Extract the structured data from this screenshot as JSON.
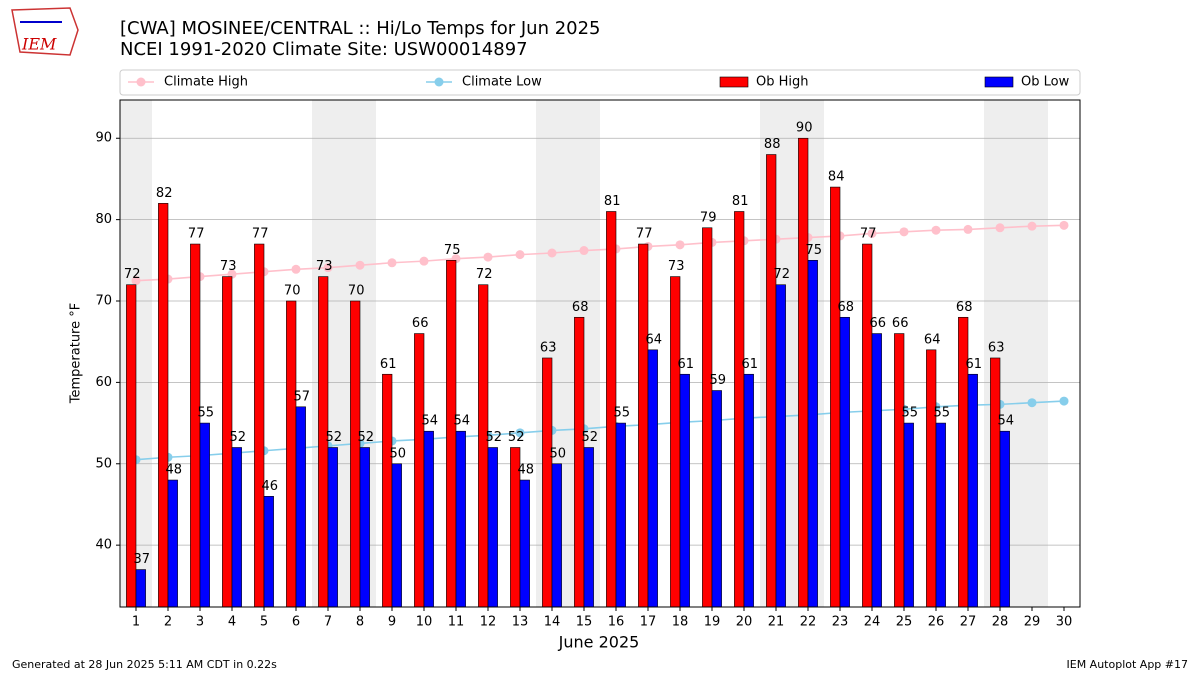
{
  "logo_text": "IEM",
  "chart_data": {
    "type": "bar",
    "title": "[CWA] MOSINEE/CENTRAL :: Hi/Lo Temps for Jun 2025",
    "subtitle": "NCEI 1991-2020 Climate Site: USW00014897",
    "x_label": "June 2025",
    "y_label": "Temperature $^\\circ$F",
    "x": [
      1,
      2,
      3,
      4,
      5,
      6,
      7,
      8,
      9,
      10,
      11,
      12,
      13,
      14,
      15,
      16,
      17,
      18,
      19,
      20,
      21,
      22,
      23,
      24,
      25,
      26,
      27,
      28,
      29,
      30
    ],
    "xlim": [
      0.5,
      30.5
    ],
    "xticks": [
      1,
      2,
      3,
      4,
      5,
      6,
      7,
      8,
      9,
      10,
      11,
      12,
      13,
      14,
      15,
      16,
      17,
      18,
      19,
      20,
      21,
      22,
      23,
      24,
      25,
      26,
      27,
      28,
      29,
      30
    ],
    "ylim": [
      32.4,
      94.7
    ],
    "yticks": [
      40,
      50,
      60,
      70,
      80,
      90
    ],
    "grid": true,
    "shaded_x": [
      1,
      7,
      8,
      14,
      15,
      21,
      22,
      28,
      29
    ],
    "series": [
      {
        "name": "Climate High",
        "type": "line",
        "color": "#ffc0cb",
        "values": [
          72.5,
          72.7,
          73.0,
          73.3,
          73.6,
          73.9,
          74.1,
          74.4,
          74.7,
          74.9,
          75.2,
          75.4,
          75.7,
          75.9,
          76.2,
          76.4,
          76.7,
          76.9,
          77.2,
          77.4,
          77.6,
          77.8,
          78.0,
          78.3,
          78.5,
          78.7,
          78.8,
          79.0,
          79.2,
          79.3
        ]
      },
      {
        "name": "Climate Low",
        "type": "line",
        "color": "#87ceeb",
        "values": [
          50.5,
          50.8,
          51.0,
          51.3,
          51.6,
          51.9,
          52.2,
          52.5,
          52.8,
          53.0,
          53.3,
          53.5,
          53.8,
          54.1,
          54.3,
          54.6,
          54.8,
          55.1,
          55.3,
          55.6,
          55.8,
          56.0,
          56.3,
          56.5,
          56.7,
          57.0,
          57.2,
          57.3,
          57.5,
          57.7
        ]
      },
      {
        "name": "Ob High",
        "type": "bar",
        "color": "#ff0000",
        "values": [
          72,
          82,
          77,
          73,
          77,
          70,
          73,
          70,
          61,
          66,
          75,
          72,
          52,
          63,
          68,
          81,
          77,
          73,
          79,
          81,
          88,
          90,
          84,
          77,
          66,
          64,
          68,
          63,
          null,
          null
        ]
      },
      {
        "name": "Ob Low",
        "type": "bar",
        "color": "#0000ff",
        "values": [
          37,
          48,
          55,
          52,
          46,
          57,
          52,
          52,
          50,
          54,
          54,
          52,
          48,
          50,
          52,
          55,
          64,
          61,
          59,
          61,
          72,
          75,
          68,
          66,
          55,
          55,
          61,
          54,
          null,
          null
        ]
      }
    ],
    "footer_left": "Generated at 28 Jun 2025 5:11 AM CDT in 0.22s",
    "footer_right": "IEM Autoplot App #17"
  }
}
